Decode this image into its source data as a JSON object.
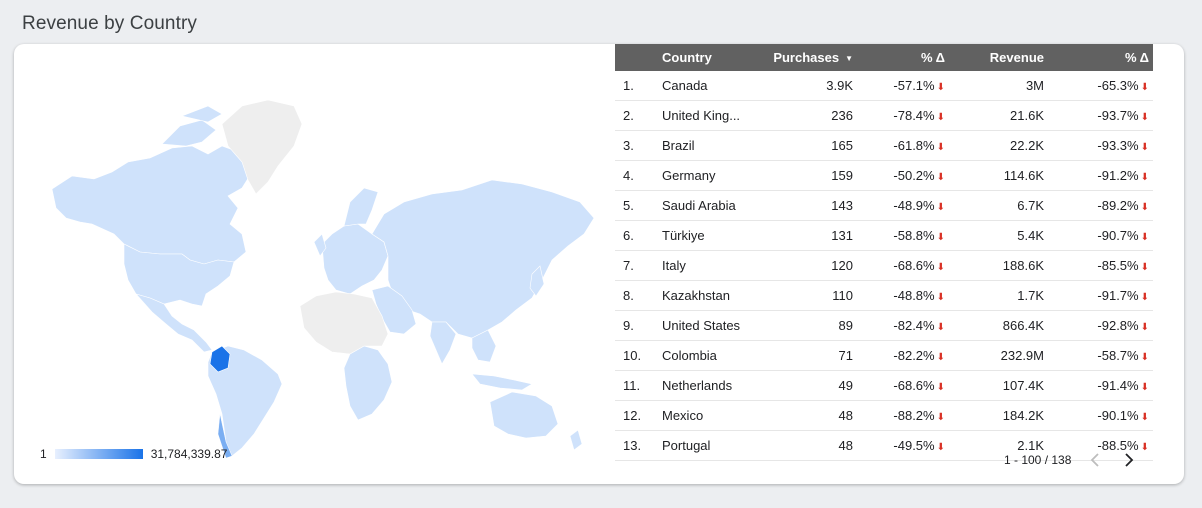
{
  "section": {
    "title": "Revenue by Country"
  },
  "legend": {
    "min": "1",
    "max": "31,784,339.87",
    "color_low": "#e8f0fe",
    "color_high": "#1a73e8"
  },
  "table": {
    "headers": {
      "country": "Country",
      "purchases": "Purchases",
      "pct1": "% Δ",
      "revenue": "Revenue",
      "pct2": "% Δ"
    },
    "sort_icon": "▼",
    "rows": [
      {
        "idx": "1.",
        "country": "Canada",
        "purchases": "3.9K",
        "pct1": "-57.1%",
        "revenue": "3M",
        "pct2": "-65.3%"
      },
      {
        "idx": "2.",
        "country": "United King...",
        "purchases": "236",
        "pct1": "-78.4%",
        "revenue": "21.6K",
        "pct2": "-93.7%"
      },
      {
        "idx": "3.",
        "country": "Brazil",
        "purchases": "165",
        "pct1": "-61.8%",
        "revenue": "22.2K",
        "pct2": "-93.3%"
      },
      {
        "idx": "4.",
        "country": "Germany",
        "purchases": "159",
        "pct1": "-50.2%",
        "revenue": "114.6K",
        "pct2": "-91.2%"
      },
      {
        "idx": "5.",
        "country": "Saudi Arabia",
        "purchases": "143",
        "pct1": "-48.9%",
        "revenue": "6.7K",
        "pct2": "-89.2%"
      },
      {
        "idx": "6.",
        "country": "Türkiye",
        "purchases": "131",
        "pct1": "-58.8%",
        "revenue": "5.4K",
        "pct2": "-90.7%"
      },
      {
        "idx": "7.",
        "country": "Italy",
        "purchases": "120",
        "pct1": "-68.6%",
        "revenue": "188.6K",
        "pct2": "-85.5%"
      },
      {
        "idx": "8.",
        "country": "Kazakhstan",
        "purchases": "110",
        "pct1": "-48.8%",
        "revenue": "1.7K",
        "pct2": "-91.7%"
      },
      {
        "idx": "9.",
        "country": "United States",
        "purchases": "89",
        "pct1": "-82.4%",
        "revenue": "866.4K",
        "pct2": "-92.8%"
      },
      {
        "idx": "10.",
        "country": "Colombia",
        "purchases": "71",
        "pct1": "-82.2%",
        "revenue": "232.9M",
        "pct2": "-58.7%"
      },
      {
        "idx": "11.",
        "country": "Netherlands",
        "purchases": "49",
        "pct1": "-68.6%",
        "revenue": "107.4K",
        "pct2": "-91.4%"
      },
      {
        "idx": "12.",
        "country": "Mexico",
        "purchases": "48",
        "pct1": "-88.2%",
        "revenue": "184.2K",
        "pct2": "-90.1%"
      },
      {
        "idx": "13.",
        "country": "Portugal",
        "purchases": "48",
        "pct1": "-49.5%",
        "revenue": "2.1K",
        "pct2": "-88.5%"
      }
    ],
    "down_icon": "⬇",
    "down_color": "#d93025"
  },
  "pager": {
    "text": "1 - 100 / 138",
    "prev_icon": "chevron-left-icon",
    "next_icon": "chevron-right-icon"
  }
}
